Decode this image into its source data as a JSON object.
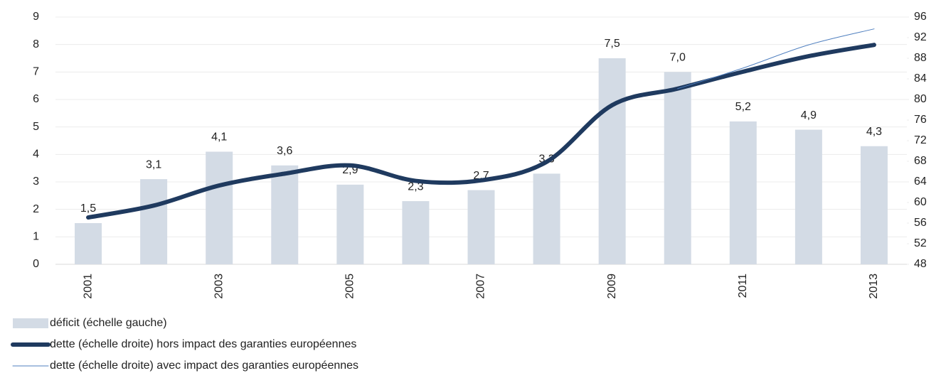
{
  "chart_data": {
    "type": "combo",
    "categories": [
      "2001",
      null,
      "2003",
      null,
      "2005",
      null,
      "2007",
      null,
      "2009",
      null,
      "2011",
      null,
      "2013"
    ],
    "series": [
      {
        "name": "déficit (échelle gauche)",
        "type": "bar",
        "axis": "y",
        "color": "#d3dbe5",
        "values": [
          1.5,
          3.1,
          4.1,
          3.6,
          2.9,
          2.3,
          2.7,
          3.3,
          7.5,
          7.0,
          5.2,
          4.9,
          4.3
        ],
        "value_labels": [
          "1,5",
          "3,1",
          "4,1",
          "3,6",
          "2,9",
          "2,3",
          "2,7",
          "3,3",
          "7,5",
          "7,0",
          "5,2",
          "4,9",
          "4,3"
        ]
      },
      {
        "name": "dette (échelle droite) hors impact des garanties européennes",
        "type": "line",
        "axis": "y2",
        "color": "#1f3a5f",
        "width": 6,
        "values": [
          57.1,
          59.4,
          63.3,
          65.6,
          67.2,
          64.2,
          64.3,
          67.9,
          78.9,
          82.1,
          85.4,
          88.4,
          90.6
        ]
      },
      {
        "name": "dette (échelle droite) avec impact des garanties européennes",
        "type": "line",
        "axis": "y2",
        "color": "#4f7fbf",
        "width": 1,
        "values": [
          null,
          null,
          null,
          null,
          null,
          null,
          null,
          null,
          null,
          82.1,
          86.1,
          90.6,
          93.7
        ]
      }
    ],
    "ylim": [
      0,
      9
    ],
    "yticks": [
      0,
      1,
      2,
      3,
      4,
      5,
      6,
      7,
      8,
      9
    ],
    "y2lim": [
      48,
      96
    ],
    "y2ticks": [
      48,
      52,
      56,
      60,
      64,
      68,
      72,
      76,
      80,
      84,
      88,
      92,
      96
    ],
    "grid": true,
    "smooth": true,
    "legend": "bottom"
  }
}
